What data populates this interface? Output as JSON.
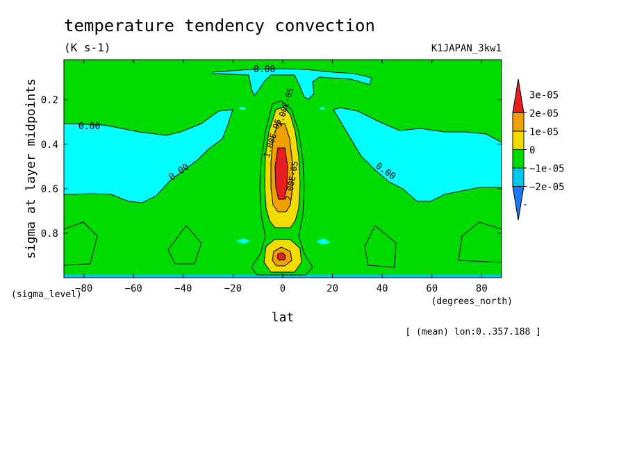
{
  "chart_data": {
    "type": "contour",
    "title": "temperature tendency convection",
    "units": "(K s-1)",
    "dataset": "K1JAPAN_3kw1",
    "xlabel": "lat",
    "x_units": "(degrees_north)",
    "ylabel": "sigma at layer midpoints",
    "y_units": "(sigma_level)",
    "note": "[ (mean) lon:0..357.188 ]",
    "xlim": [
      -88,
      88
    ],
    "ylim": [
      0.02,
      1.0
    ],
    "y_inverted": true,
    "x_ticks": [
      -80,
      -60,
      -40,
      -20,
      0,
      20,
      40,
      60,
      80
    ],
    "x_tick_labels": [
      "−80",
      "−60",
      "−40",
      "−20",
      "0",
      "20",
      "40",
      "60",
      "80"
    ],
    "y_ticks": [
      0.2,
      0.4,
      0.6,
      0.8
    ],
    "y_tick_labels": [
      "0.2",
      "0.4",
      "0.6",
      "0.8"
    ],
    "colorbar": {
      "levels": [
        -3e-05,
        -2e-05,
        -1e-05,
        0,
        1e-05,
        2e-05,
        3e-05,
        4e-05
      ],
      "tick_labels": [
        "3e-05",
        "2e-05",
        "1e-05",
        "0",
        "−1e-05",
        "−2e-05"
      ],
      "colors": [
        "#1e78f0",
        "#00c8f0",
        "#00dc00",
        "#f0dc00",
        "#f0a000",
        "#e61e1e"
      ]
    },
    "contour_labels": [
      "0.00",
      "0.00",
      "0.00",
      "0.00",
      "1.00E-05",
      "2.00E-05",
      "2.00E-05"
    ],
    "regions": [
      {
        "level": "-1e-05 to 0",
        "desc": "upper troposphere band",
        "lat": [
          -88,
          -20
        ],
        "sigma": [
          0.28,
          0.66
        ]
      },
      {
        "level": "-1e-05 to 0",
        "desc": "upper troposphere band",
        "lat": [
          20,
          88
        ],
        "sigma": [
          0.28,
          0.66
        ]
      },
      {
        "level": "-1e-05 to 0",
        "desc": "upper level",
        "lat": [
          -20,
          38
        ],
        "sigma": [
          0.02,
          0.13
        ]
      },
      {
        "level": "1e-05 to 3e-05+",
        "desc": "equatorial convection maximum",
        "lat": [
          -8,
          8
        ],
        "sigma": [
          0.22,
          0.95
        ],
        "peak": "> 3e-05 near sigma 0.5 and 0.9"
      }
    ]
  }
}
